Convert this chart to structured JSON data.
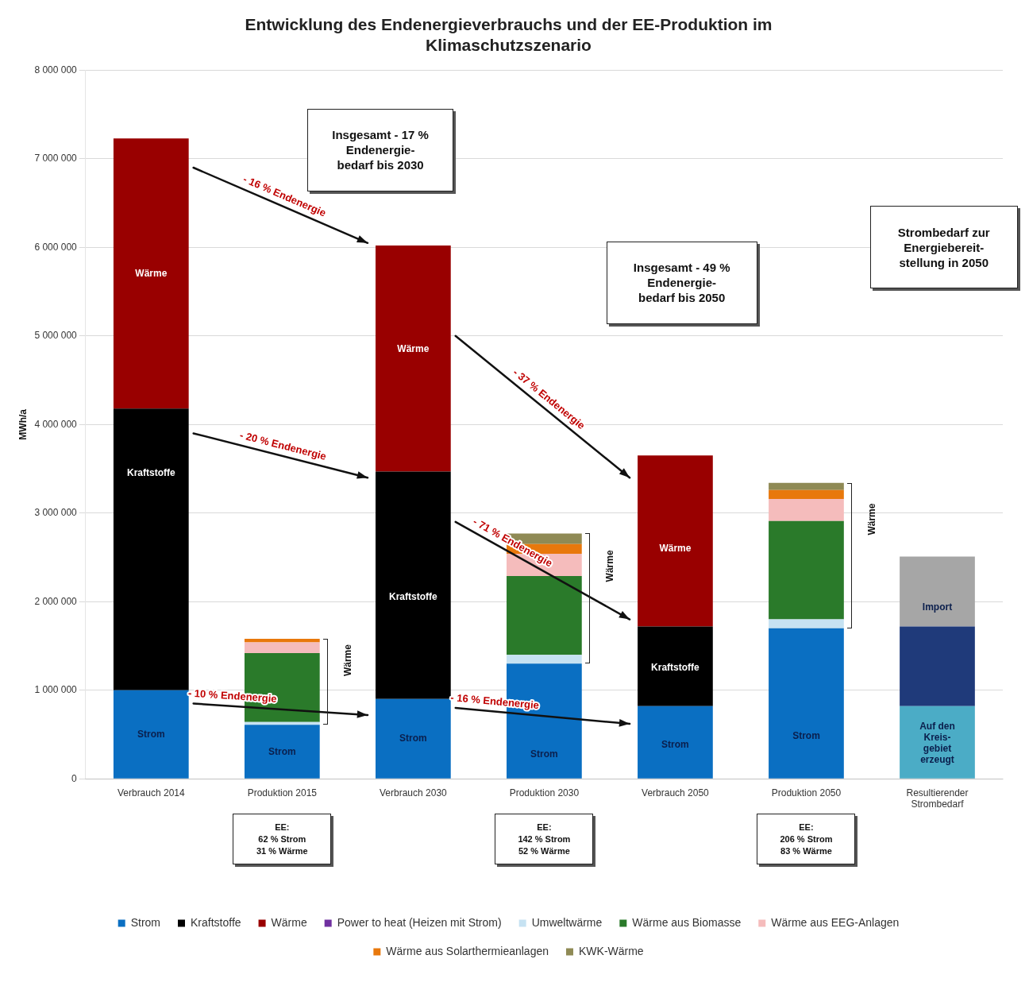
{
  "chart_data": {
    "type": "bar",
    "stacked": true,
    "title": "Entwicklung des Endenergieverbrauchs und der EE-Produktion im\nKlimaschutzszenario",
    "ylabel": "MWh/a",
    "categories": [
      "Verbrauch 2014",
      "Produktion 2015",
      "Verbrauch 2030",
      "Produktion 2030",
      "Verbrauch 2050",
      "Produktion 2050",
      "Resultierender\nStrombedarf"
    ],
    "series": [
      {
        "name": "Strom",
        "color": "#0a6fc2",
        "values": [
          1000000,
          610000,
          900000,
          1300000,
          820000,
          1700000,
          null
        ]
      },
      {
        "name": "Kraftstoffe",
        "color": "#000000",
        "values": [
          3180000,
          null,
          2570000,
          null,
          900000,
          null,
          null
        ]
      },
      {
        "name": "Wärme",
        "color": "#990000",
        "values": [
          3050000,
          null,
          2550000,
          null,
          1930000,
          null,
          null
        ]
      },
      {
        "name": "Power to heat (Heizen mit Strom)",
        "color": "#7030a0",
        "values": [
          null,
          null,
          null,
          null,
          null,
          null,
          null
        ]
      },
      {
        "name": "Umweltwärme",
        "color": "#c6e2f2",
        "values": [
          null,
          30000,
          null,
          100000,
          null,
          100000,
          null
        ]
      },
      {
        "name": "Wärme aus Biomasse",
        "color": "#2a7a2a",
        "values": [
          null,
          780000,
          null,
          890000,
          null,
          1110000,
          null
        ]
      },
      {
        "name": "Wärme aus EEG-Anlagen",
        "color": "#f5bcbc",
        "values": [
          null,
          120000,
          null,
          250000,
          null,
          250000,
          null
        ]
      },
      {
        "name": "Wärme aus Solarthermieanlagen",
        "color": "#e8780c",
        "values": [
          null,
          40000,
          null,
          110000,
          null,
          100000,
          null
        ]
      },
      {
        "name": "KWK-Wärme",
        "color": "#8f8a55",
        "values": [
          null,
          null,
          null,
          120000,
          null,
          80000,
          null
        ]
      },
      {
        "color": "#4bacc6",
        "values": [
          null,
          null,
          null,
          null,
          null,
          null,
          820000
        ]
      },
      {
        "color": "#1f3a7a",
        "values": [
          null,
          null,
          null,
          null,
          null,
          null,
          900000
        ]
      },
      {
        "color": "#a6a6a6",
        "values": [
          null,
          null,
          null,
          null,
          null,
          null,
          790000
        ]
      }
    ],
    "ylim": [
      0,
      8000000
    ],
    "yticks": [
      {
        "value": 0,
        "label": "0"
      },
      {
        "value": 1000000,
        "label": "1 000 000"
      },
      {
        "value": 2000000,
        "label": "2 000 000"
      },
      {
        "value": 3000000,
        "label": "3 000 000"
      },
      {
        "value": 4000000,
        "label": "4 000 000"
      },
      {
        "value": 5000000,
        "label": "5 000 000"
      },
      {
        "value": 6000000,
        "label": "6 000 000"
      },
      {
        "value": 7000000,
        "label": "7 000 000"
      },
      {
        "value": 8000000,
        "label": "8 000 000"
      }
    ],
    "grid": "y",
    "legend": "bottom",
    "annotations": [
      "Wärme",
      "Kraftstoffe",
      "Strom",
      "Strom",
      "Wärme",
      "Kraftstoffe",
      "Strom",
      "Strom",
      "Wärme",
      "Kraftstoffe",
      "Strom",
      "Strom",
      "Import",
      "Auf den\nKreis-\ngebiet\nerzeugt",
      "- 16 % Endenergie",
      "- 20 % Endenergie",
      "- 10 % Endenergie",
      "- 37 % Endenergie",
      "- 71 % Endenergie",
      "- 16 % Endenergie",
      "Insgesamt - 17 %\nEndenergie-\nbedarf bis 2030",
      "Insgesamt - 49 %\nEndenergie-\nbedarf bis 2050",
      "Strombedarf zur\nEnergiebereit-\nstellung in 2050",
      "EE:\n62 % Strom\n31 % Wärme",
      "EE:\n142 % Strom\n52 % Wärme",
      "EE:\n206 % Strom\n83 % Wärme",
      "Wärme",
      "Wärme",
      "Wärme"
    ]
  }
}
